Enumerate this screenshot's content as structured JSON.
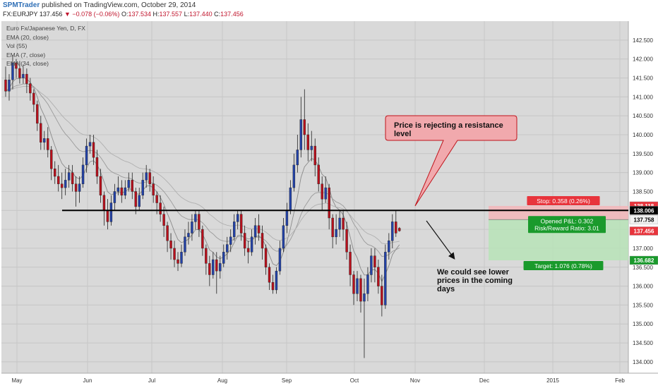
{
  "header": {
    "publisher": "SPMTrader",
    "published_text": " published on TradingView.com, October 29, 2014",
    "symbol": "FX:EURJPY",
    "last": "137.456",
    "change": "−0.078 (−0.06%)",
    "o_label": "O:",
    "o_value": "137.534",
    "h_label": "H:",
    "h_value": "137.557",
    "l_label": "L:",
    "l_value": "137.440",
    "c_label": "C:",
    "c_value": "137.456"
  },
  "legend": [
    "Euro Fx/Japanese Yen, D, FX",
    "EMA (20, close)",
    "Vol (55)",
    "EMA (7, close)",
    "EMA (34, close)"
  ],
  "annotations": {
    "callout": "Price is rejecting a resistance level",
    "projection": "We could see lower prices in the coming days"
  },
  "position": {
    "stop_label": "Stop: 0.358 (0.26%)",
    "opened_label": "Opened P&L: 0.302",
    "rr_label": "Risk/Reward Ratio: 3.01",
    "target_label": "Target: 1.076 (0.78%)"
  },
  "colors": {
    "up": "#2342a8",
    "down": "#b8101c",
    "stop_fill": "#f2b5b8",
    "target_fill": "#b7e3b7",
    "callout_fill": "#f1a9ad",
    "badge_red": "#e8343c",
    "badge_green": "#1a9a2c"
  },
  "chart_data": {
    "type": "candlestick",
    "symbol": "FX:EURJPY",
    "y_ticks": [
      "142.500",
      "142.000",
      "141.500",
      "141.000",
      "140.500",
      "140.000",
      "139.500",
      "139.000",
      "138.500",
      "138.000",
      "137.500",
      "137.000",
      "136.500",
      "136.000",
      "135.500",
      "135.000",
      "134.500",
      "134.000"
    ],
    "x_ticks": [
      "May",
      "Jun",
      "Jul",
      "Aug",
      "Sep",
      "Oct",
      "Nov",
      "Dec",
      "2015",
      "Feb"
    ],
    "ylim": [
      133.7,
      143.0
    ],
    "price_labels": [
      "138.118",
      "138.006",
      "137.758",
      "137.456",
      "136.682"
    ],
    "resistance": 138.0,
    "position": {
      "stop": 138.118,
      "entry": 137.758,
      "target": 136.682
    },
    "grid": true,
    "candles": [
      [
        141.45,
        141.15,
        141.8,
        141.0
      ],
      [
        141.15,
        141.45,
        141.6,
        140.9
      ],
      [
        141.45,
        141.9,
        142.1,
        141.2
      ],
      [
        141.9,
        141.75,
        142.0,
        141.5
      ],
      [
        141.75,
        141.5,
        141.95,
        141.35
      ],
      [
        141.5,
        141.6,
        141.85,
        141.35
      ],
      [
        141.6,
        141.35,
        141.75,
        141.1
      ],
      [
        141.35,
        141.1,
        141.5,
        140.9
      ],
      [
        141.1,
        140.8,
        141.2,
        140.6
      ],
      [
        140.8,
        140.3,
        140.9,
        140.1
      ],
      [
        140.3,
        139.8,
        140.5,
        139.6
      ],
      [
        139.8,
        139.9,
        140.1,
        139.6
      ],
      [
        139.9,
        139.6,
        140.2,
        139.4
      ],
      [
        139.6,
        139.1,
        139.7,
        138.8
      ],
      [
        139.1,
        138.9,
        139.3,
        138.7
      ],
      [
        138.9,
        138.7,
        139.2,
        138.5
      ],
      [
        138.7,
        138.6,
        139.0,
        138.3
      ],
      [
        138.6,
        138.8,
        139.1,
        138.4
      ],
      [
        138.8,
        139.0,
        139.2,
        138.6
      ],
      [
        139.0,
        138.7,
        139.2,
        138.5
      ],
      [
        138.7,
        138.5,
        138.9,
        138.1
      ],
      [
        138.5,
        138.7,
        138.9,
        138.2
      ],
      [
        138.7,
        139.2,
        139.4,
        138.6
      ],
      [
        139.2,
        139.7,
        139.9,
        139.0
      ],
      [
        139.7,
        139.8,
        140.0,
        139.5
      ],
      [
        139.8,
        139.4,
        140.0,
        139.2
      ],
      [
        139.4,
        138.9,
        139.6,
        138.7
      ],
      [
        138.9,
        138.4,
        139.1,
        138.2
      ],
      [
        138.4,
        138.0,
        138.5,
        137.6
      ],
      [
        138.0,
        137.7,
        138.3,
        137.5
      ],
      [
        137.7,
        138.2,
        138.4,
        137.6
      ],
      [
        138.2,
        138.5,
        138.7,
        138.0
      ],
      [
        138.5,
        138.6,
        138.9,
        138.4
      ],
      [
        138.6,
        138.4,
        138.8,
        138.2
      ],
      [
        138.4,
        138.6,
        138.8,
        138.3
      ],
      [
        138.6,
        138.8,
        139.0,
        138.5
      ],
      [
        138.8,
        138.5,
        139.0,
        138.3
      ],
      [
        138.5,
        138.1,
        138.6,
        137.9
      ],
      [
        138.1,
        138.4,
        138.6,
        138.0
      ],
      [
        138.4,
        138.8,
        139.0,
        138.3
      ],
      [
        138.8,
        139.0,
        139.2,
        138.6
      ],
      [
        139.0,
        138.7,
        139.1,
        138.5
      ],
      [
        138.7,
        138.4,
        138.9,
        138.2
      ],
      [
        138.4,
        138.2,
        138.5,
        137.9
      ],
      [
        138.2,
        137.9,
        138.4,
        137.7
      ],
      [
        137.9,
        137.6,
        138.1,
        137.3
      ],
      [
        137.6,
        137.2,
        137.7,
        136.9
      ],
      [
        137.2,
        137.0,
        137.4,
        136.7
      ],
      [
        137.0,
        136.7,
        137.2,
        136.5
      ],
      [
        136.7,
        136.6,
        136.9,
        136.4
      ],
      [
        136.6,
        136.9,
        137.1,
        136.5
      ],
      [
        136.9,
        137.3,
        137.5,
        136.8
      ],
      [
        137.3,
        137.4,
        137.7,
        137.1
      ],
      [
        137.4,
        137.7,
        137.9,
        137.2
      ],
      [
        137.7,
        137.9,
        138.0,
        137.5
      ],
      [
        137.9,
        137.5,
        138.0,
        137.3
      ],
      [
        137.5,
        137.0,
        137.6,
        136.8
      ],
      [
        137.0,
        136.6,
        137.1,
        136.3
      ],
      [
        136.6,
        136.3,
        136.8,
        136.0
      ],
      [
        136.3,
        136.7,
        136.9,
        136.2
      ],
      [
        136.7,
        136.4,
        136.9,
        135.8
      ],
      [
        136.4,
        136.6,
        136.8,
        136.2
      ],
      [
        136.6,
        136.9,
        137.1,
        136.5
      ],
      [
        136.9,
        137.1,
        137.3,
        136.7
      ],
      [
        137.1,
        137.3,
        137.5,
        136.9
      ],
      [
        137.3,
        137.7,
        137.9,
        137.2
      ],
      [
        137.7,
        137.9,
        138.0,
        137.5
      ],
      [
        137.9,
        137.4,
        138.0,
        137.2
      ],
      [
        137.4,
        137.0,
        137.6,
        136.8
      ],
      [
        137.0,
        136.9,
        137.2,
        136.6
      ],
      [
        136.9,
        137.3,
        137.5,
        136.8
      ],
      [
        137.3,
        137.6,
        137.8,
        137.1
      ],
      [
        137.6,
        137.4,
        137.9,
        137.2
      ],
      [
        137.4,
        137.0,
        137.6,
        136.7
      ],
      [
        137.0,
        136.5,
        137.1,
        136.3
      ],
      [
        136.5,
        136.1,
        136.6,
        135.9
      ],
      [
        136.1,
        135.9,
        136.3,
        135.8
      ],
      [
        135.9,
        136.4,
        136.5,
        135.8
      ],
      [
        136.4,
        137.0,
        137.2,
        136.3
      ],
      [
        137.0,
        137.6,
        137.8,
        136.9
      ],
      [
        137.6,
        138.0,
        138.2,
        137.4
      ],
      [
        138.0,
        138.6,
        138.8,
        137.9
      ],
      [
        138.6,
        139.2,
        139.5,
        138.5
      ],
      [
        139.2,
        139.6,
        140.0,
        139.0
      ],
      [
        139.6,
        140.4,
        141.0,
        139.4
      ],
      [
        140.4,
        140.0,
        141.2,
        139.6
      ],
      [
        140.0,
        139.6,
        140.3,
        139.3
      ],
      [
        139.6,
        139.7,
        140.1,
        139.3
      ],
      [
        139.7,
        139.2,
        139.9,
        138.9
      ],
      [
        139.2,
        138.7,
        139.4,
        138.5
      ],
      [
        138.7,
        138.3,
        138.9,
        138.0
      ],
      [
        138.3,
        138.6,
        138.9,
        138.2
      ],
      [
        138.6,
        137.8,
        138.7,
        137.5
      ],
      [
        137.8,
        137.3,
        137.9,
        137.0
      ],
      [
        137.3,
        137.5,
        137.9,
        137.1
      ],
      [
        137.5,
        137.8,
        138.0,
        137.3
      ],
      [
        137.8,
        137.5,
        138.0,
        137.2
      ],
      [
        137.5,
        136.9,
        137.7,
        136.7
      ],
      [
        136.9,
        136.3,
        137.1,
        136.0
      ],
      [
        136.3,
        135.8,
        136.4,
        135.5
      ],
      [
        135.8,
        136.2,
        136.4,
        135.6
      ],
      [
        136.2,
        135.6,
        136.3,
        135.3
      ],
      [
        135.6,
        135.8,
        136.2,
        134.1
      ],
      [
        135.8,
        136.3,
        136.5,
        135.6
      ],
      [
        136.3,
        136.8,
        137.0,
        136.1
      ],
      [
        136.8,
        136.5,
        137.0,
        136.1
      ],
      [
        136.5,
        136.0,
        136.7,
        135.8
      ],
      [
        136.0,
        135.5,
        136.3,
        135.2
      ],
      [
        135.5,
        136.9,
        137.1,
        135.4
      ],
      [
        136.9,
        137.2,
        137.4,
        136.7
      ],
      [
        137.2,
        137.7,
        137.9,
        137.0
      ],
      [
        137.7,
        137.4,
        138.0,
        137.3
      ],
      [
        137.53,
        137.46,
        137.56,
        137.44
      ]
    ]
  }
}
